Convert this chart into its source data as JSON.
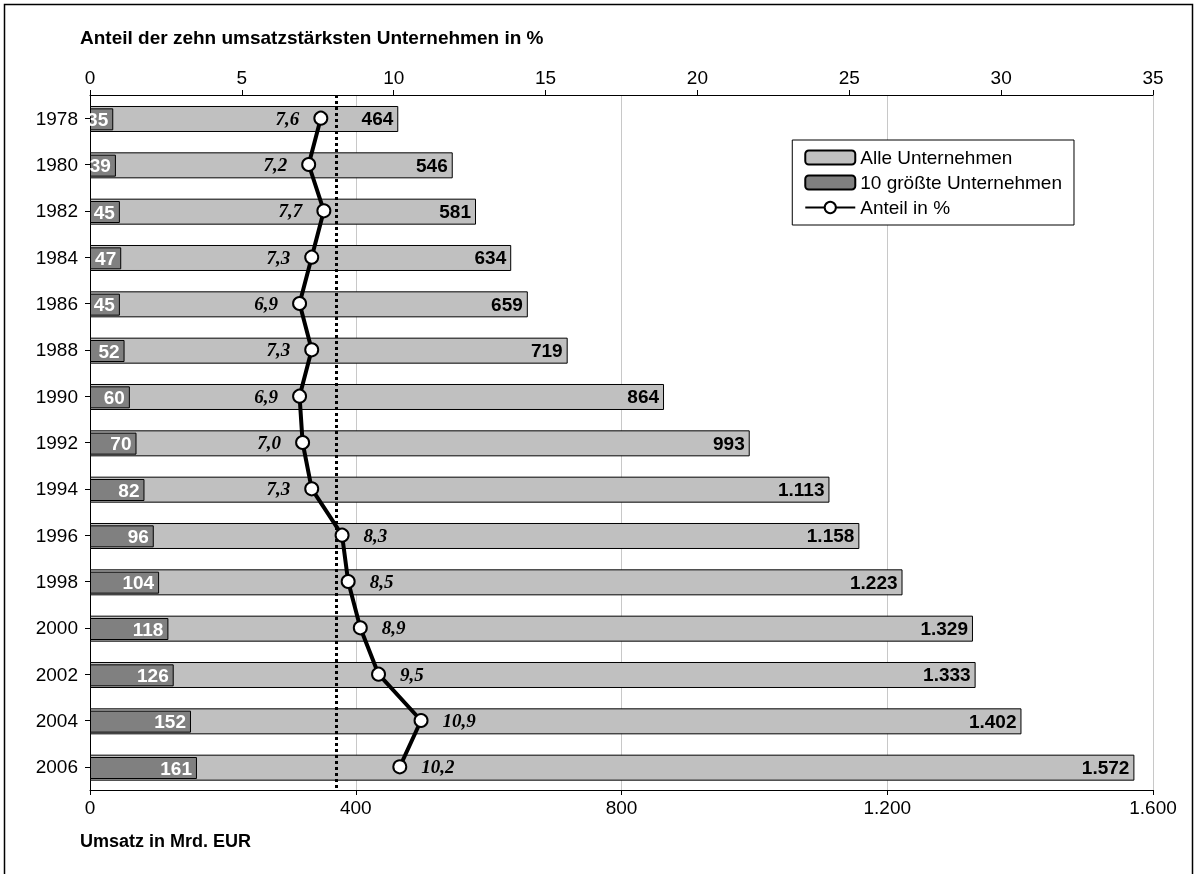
{
  "chart_data": {
    "type": "bar",
    "orientation": "horizontal",
    "xlabel": "Umsatz in Mrd. EUR",
    "x2label": "Anteil der zehn umsatzstärksten Unternehmen in %",
    "categories": [
      "1978",
      "1980",
      "1982",
      "1984",
      "1986",
      "1988",
      "1990",
      "1992",
      "1994",
      "1996",
      "1998",
      "2000",
      "2002",
      "2004",
      "2006"
    ],
    "series": [
      {
        "name": "Alle Unternehmen",
        "color": "#c0c0c0",
        "values": [
          464,
          546,
          581,
          634,
          659,
          719,
          864,
          993,
          1113,
          1158,
          1223,
          1329,
          1333,
          1402,
          1572
        ],
        "value_labels": [
          "464",
          "546",
          "581",
          "634",
          "659",
          "719",
          "864",
          "993",
          "1.113",
          "1.158",
          "1.223",
          "1.329",
          "1.333",
          "1.402",
          "1.572"
        ]
      },
      {
        "name": "10 größte Unternehmen",
        "color": "#808080",
        "values": [
          35,
          39,
          45,
          47,
          45,
          52,
          60,
          70,
          82,
          96,
          104,
          118,
          126,
          152,
          161
        ],
        "value_labels": [
          "35",
          "39",
          "45",
          "47",
          "45",
          "52",
          "60",
          "70",
          "82",
          "96",
          "104",
          "118",
          "126",
          "152",
          "161"
        ]
      },
      {
        "name": "Anteil in %",
        "type": "line",
        "axis": "x2",
        "color": "#000000",
        "marker": "circle",
        "values": [
          7.6,
          7.2,
          7.7,
          7.3,
          6.9,
          7.3,
          6.9,
          7.0,
          7.3,
          8.3,
          8.5,
          8.9,
          9.5,
          10.9,
          10.2
        ],
        "value_labels": [
          "7,6",
          "7,2",
          "7,7",
          "7,3",
          "6,9",
          "7,3",
          "6,9",
          "7,0",
          "7,3",
          "8,3",
          "8,5",
          "8,9",
          "9,5",
          "10,9",
          "10,2"
        ]
      }
    ],
    "xlim": [
      0,
      1600
    ],
    "xticks": [
      0,
      400,
      800,
      {
        "value": 1200,
        "label": "1.200"
      },
      {
        "value": 1600,
        "label": "1.600"
      }
    ],
    "x2lim": [
      0,
      35
    ],
    "x2ticks": [
      0,
      5,
      10,
      15,
      20,
      25,
      30,
      35
    ],
    "ref_lines": [
      {
        "axis": "x2",
        "value": 8.1,
        "line_style": "dotted",
        "color": "#000000"
      }
    ],
    "grid": "x",
    "legend": "top right"
  }
}
